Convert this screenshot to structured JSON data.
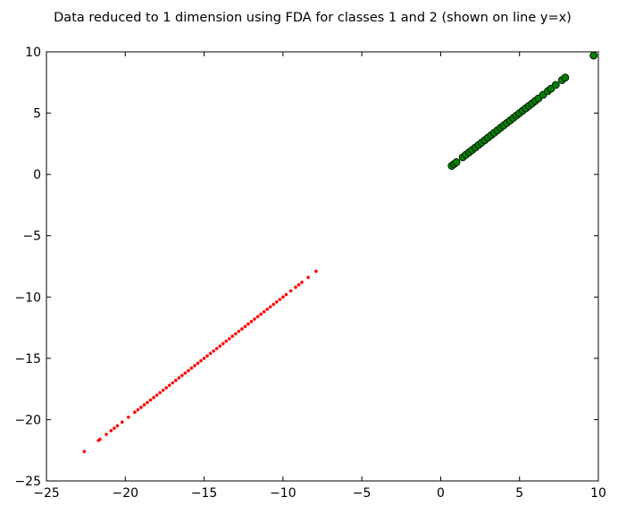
{
  "chart_data": {
    "type": "scatter",
    "title": "Data reduced to 1 dimension using FDA for classes 1 and 2 (shown on line y=x)",
    "xlabel": "",
    "ylabel": "",
    "xlim": [
      -25,
      10
    ],
    "ylim": [
      -25,
      10
    ],
    "xticks": [
      -25,
      -20,
      -15,
      -10,
      -5,
      0,
      5,
      10
    ],
    "yticks": [
      -25,
      -20,
      -15,
      -10,
      -5,
      0,
      5,
      10
    ],
    "xtick_labels": [
      "−25",
      "−20",
      "−15",
      "−10",
      "−5",
      "0",
      "5",
      "10"
    ],
    "ytick_labels": [
      "−25",
      "−20",
      "−15",
      "−10",
      "−5",
      "0",
      "5",
      "10"
    ],
    "grid": false,
    "series": [
      {
        "color": "#ff0000",
        "marker": "small-dot",
        "points": [
          [
            -22.6,
            -22.6
          ],
          [
            -21.7,
            -21.7
          ],
          [
            -21.6,
            -21.6
          ],
          [
            -21.2,
            -21.2
          ],
          [
            -20.9,
            -20.9
          ],
          [
            -20.7,
            -20.7
          ],
          [
            -20.5,
            -20.5
          ],
          [
            -20.2,
            -20.2
          ],
          [
            -19.8,
            -19.8
          ],
          [
            -19.4,
            -19.4
          ],
          [
            -19.2,
            -19.2
          ],
          [
            -19.0,
            -19.0
          ],
          [
            -18.8,
            -18.8
          ],
          [
            -18.6,
            -18.6
          ],
          [
            -18.4,
            -18.4
          ],
          [
            -18.2,
            -18.2
          ],
          [
            -18.0,
            -18.0
          ],
          [
            -17.8,
            -17.8
          ],
          [
            -17.6,
            -17.6
          ],
          [
            -17.4,
            -17.4
          ],
          [
            -17.2,
            -17.2
          ],
          [
            -17.0,
            -17.0
          ],
          [
            -16.8,
            -16.8
          ],
          [
            -16.6,
            -16.6
          ],
          [
            -16.4,
            -16.4
          ],
          [
            -16.2,
            -16.2
          ],
          [
            -16.0,
            -16.0
          ],
          [
            -15.8,
            -15.8
          ],
          [
            -15.6,
            -15.6
          ],
          [
            -15.4,
            -15.4
          ],
          [
            -15.2,
            -15.2
          ],
          [
            -15.0,
            -15.0
          ],
          [
            -14.8,
            -14.8
          ],
          [
            -14.6,
            -14.6
          ],
          [
            -14.4,
            -14.4
          ],
          [
            -14.2,
            -14.2
          ],
          [
            -14.0,
            -14.0
          ],
          [
            -13.8,
            -13.8
          ],
          [
            -13.6,
            -13.6
          ],
          [
            -13.4,
            -13.4
          ],
          [
            -13.2,
            -13.2
          ],
          [
            -13.0,
            -13.0
          ],
          [
            -12.8,
            -12.8
          ],
          [
            -12.6,
            -12.6
          ],
          [
            -12.4,
            -12.4
          ],
          [
            -12.2,
            -12.2
          ],
          [
            -12.0,
            -12.0
          ],
          [
            -11.8,
            -11.8
          ],
          [
            -11.6,
            -11.6
          ],
          [
            -11.4,
            -11.4
          ],
          [
            -11.2,
            -11.2
          ],
          [
            -11.0,
            -11.0
          ],
          [
            -10.8,
            -10.8
          ],
          [
            -10.6,
            -10.6
          ],
          [
            -10.4,
            -10.4
          ],
          [
            -10.2,
            -10.2
          ],
          [
            -10.0,
            -10.0
          ],
          [
            -9.8,
            -9.8
          ],
          [
            -9.5,
            -9.5
          ],
          [
            -9.2,
            -9.2
          ],
          [
            -9.0,
            -9.0
          ],
          [
            -8.8,
            -8.8
          ],
          [
            -8.4,
            -8.4
          ],
          [
            -7.9,
            -7.9
          ]
        ]
      },
      {
        "color": "#008000",
        "marker": "circle",
        "points": [
          [
            0.7,
            0.7
          ],
          [
            0.85,
            0.85
          ],
          [
            1.0,
            1.0
          ],
          [
            1.4,
            1.4
          ],
          [
            1.6,
            1.6
          ],
          [
            1.8,
            1.8
          ],
          [
            2.0,
            2.0
          ],
          [
            2.2,
            2.2
          ],
          [
            2.4,
            2.4
          ],
          [
            2.6,
            2.6
          ],
          [
            2.8,
            2.8
          ],
          [
            3.0,
            3.0
          ],
          [
            3.2,
            3.2
          ],
          [
            3.4,
            3.4
          ],
          [
            3.6,
            3.6
          ],
          [
            3.8,
            3.8
          ],
          [
            4.0,
            4.0
          ],
          [
            4.2,
            4.2
          ],
          [
            4.4,
            4.4
          ],
          [
            4.6,
            4.6
          ],
          [
            4.8,
            4.8
          ],
          [
            5.0,
            5.0
          ],
          [
            5.2,
            5.2
          ],
          [
            5.4,
            5.4
          ],
          [
            5.6,
            5.6
          ],
          [
            5.8,
            5.8
          ],
          [
            6.0,
            6.0
          ],
          [
            6.2,
            6.2
          ],
          [
            6.5,
            6.5
          ],
          [
            6.8,
            6.8
          ],
          [
            7.0,
            7.0
          ],
          [
            7.3,
            7.3
          ],
          [
            7.7,
            7.7
          ],
          [
            7.9,
            7.9
          ],
          [
            9.7,
            9.7
          ]
        ]
      }
    ]
  }
}
